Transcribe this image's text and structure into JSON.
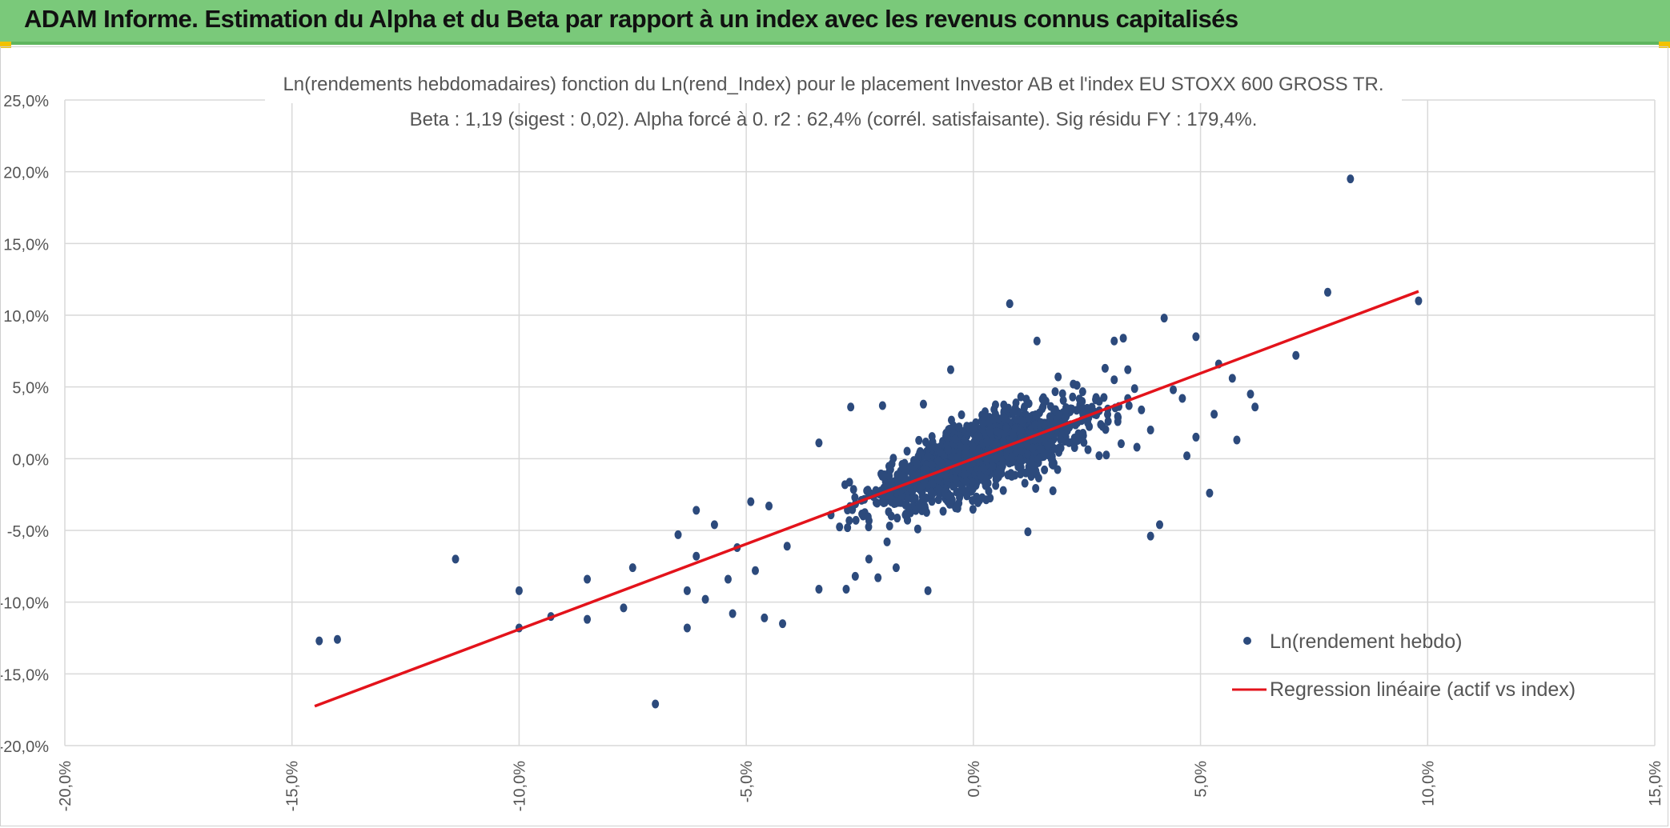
{
  "header": {
    "title": "ADAM Informe. Estimation du Alpha et du Beta par rapport à un index avec les revenus connus capitalisés"
  },
  "colors": {
    "header_bg": "#7ac97a",
    "point": "#2c4a7c",
    "regression": "#e3131b",
    "grid": "#d9d9d9"
  },
  "chart_data": {
    "type": "scatter",
    "title_line1": "Ln(rendements hebdomadaires) fonction du Ln(rend_Index) pour le placement Investor AB et l'index EU STOXX 600 GROSS TR.",
    "title_line2": "Beta : 1,19 (sigest : 0,02). Alpha forcé à 0. r2 : 62,4% (corrél. satisfaisante). Sig résidu FY : 179,4%.",
    "xlim": [
      -0.2,
      0.15
    ],
    "ylim": [
      -0.2,
      0.25
    ],
    "x_ticks": [
      -0.2,
      -0.15,
      -0.1,
      -0.05,
      0.0,
      0.05,
      0.1,
      0.15
    ],
    "x_tick_labels": [
      "-20,0%",
      "-15,0%",
      "-10,0%",
      "-5,0%",
      "0,0%",
      "5,0%",
      "10,0%",
      "15,0%"
    ],
    "y_ticks": [
      0.25,
      0.2,
      0.15,
      0.1,
      0.05,
      0.0,
      -0.05,
      -0.1,
      -0.15,
      -0.2
    ],
    "y_tick_labels": [
      "25,0%",
      "20,0%",
      "15,0%",
      "10,0%",
      "5,0%",
      "0,0%",
      "-5,0%",
      "-10,0%",
      "-15,0%",
      "-20,0%"
    ],
    "legend": {
      "placement": "bottom-right",
      "points_label": "Ln(rendement hebdo)",
      "line_label": "Regression linéaire (actif vs index)"
    },
    "regression": {
      "slope": 1.19,
      "intercept": 0.0,
      "x_start": -0.145,
      "x_end": 0.098
    },
    "series": [
      {
        "name": "Ln(rendement hebdo)",
        "points": [
          [
            -0.144,
            -0.127
          ],
          [
            -0.14,
            -0.126
          ],
          [
            -0.114,
            -0.07
          ],
          [
            -0.1,
            -0.092
          ],
          [
            -0.1,
            -0.118
          ],
          [
            -0.093,
            -0.11
          ],
          [
            -0.085,
            -0.084
          ],
          [
            -0.085,
            -0.112
          ],
          [
            -0.077,
            -0.104
          ],
          [
            -0.075,
            -0.076
          ],
          [
            -0.07,
            -0.171
          ],
          [
            -0.065,
            -0.053
          ],
          [
            -0.063,
            -0.118
          ],
          [
            -0.063,
            -0.092
          ],
          [
            -0.061,
            -0.068
          ],
          [
            -0.061,
            -0.036
          ],
          [
            -0.059,
            -0.098
          ],
          [
            -0.057,
            -0.046
          ],
          [
            -0.054,
            -0.084
          ],
          [
            -0.053,
            -0.108
          ],
          [
            -0.052,
            -0.062
          ],
          [
            -0.049,
            -0.03
          ],
          [
            -0.048,
            -0.078
          ],
          [
            -0.046,
            -0.111
          ],
          [
            -0.045,
            -0.033
          ],
          [
            -0.042,
            -0.115
          ],
          [
            -0.041,
            -0.061
          ],
          [
            -0.034,
            0.011
          ],
          [
            -0.034,
            -0.091
          ],
          [
            -0.028,
            -0.091
          ],
          [
            -0.027,
            0.036
          ],
          [
            -0.026,
            -0.082
          ],
          [
            -0.023,
            -0.07
          ],
          [
            -0.021,
            -0.083
          ],
          [
            -0.02,
            0.037
          ],
          [
            -0.019,
            -0.058
          ],
          [
            -0.017,
            -0.076
          ],
          [
            -0.01,
            -0.092
          ],
          [
            -0.011,
            0.038
          ],
          [
            -0.005,
            0.062
          ],
          [
            0.008,
            0.108
          ],
          [
            0.012,
            -0.051
          ],
          [
            0.014,
            0.082
          ],
          [
            0.031,
            0.082
          ],
          [
            0.033,
            0.084
          ],
          [
            0.039,
            0.02
          ],
          [
            0.039,
            -0.054
          ],
          [
            0.041,
            -0.046
          ],
          [
            0.042,
            0.098
          ],
          [
            0.046,
            0.042
          ],
          [
            0.047,
            0.002
          ],
          [
            0.049,
            0.085
          ],
          [
            0.049,
            0.015
          ],
          [
            0.052,
            -0.024
          ],
          [
            0.053,
            0.031
          ],
          [
            0.054,
            0.066
          ],
          [
            0.057,
            0.056
          ],
          [
            0.058,
            0.013
          ],
          [
            0.061,
            0.045
          ],
          [
            0.062,
            0.036
          ],
          [
            0.071,
            0.072
          ],
          [
            0.078,
            0.116
          ],
          [
            0.083,
            0.195
          ],
          [
            0.098,
            0.11
          ],
          [
            0.044,
            0.048
          ],
          [
            0.037,
            0.034
          ],
          [
            0.034,
            0.062
          ],
          [
            0.031,
            0.055
          ],
          [
            0.027,
            0.041
          ],
          [
            0.036,
            0.008
          ],
          [
            0.029,
            0.063
          ],
          [
            0.022,
            0.052
          ]
        ]
      }
    ]
  }
}
